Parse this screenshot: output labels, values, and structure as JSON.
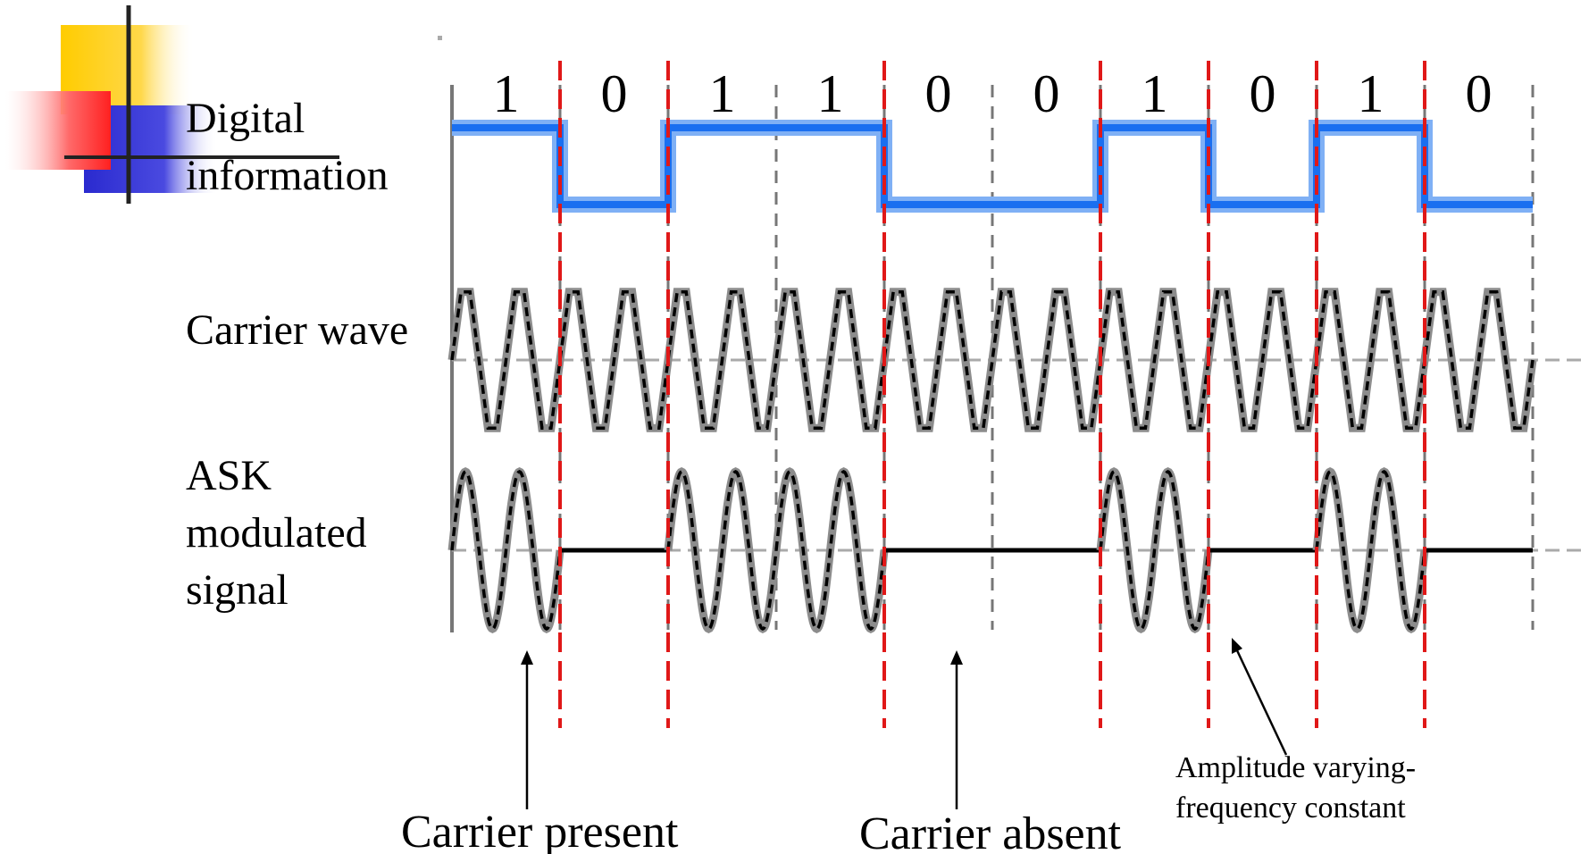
{
  "bits": [
    "1",
    "0",
    "1",
    "1",
    "0",
    "0",
    "1",
    "0",
    "1",
    "0"
  ],
  "labels": {
    "digital": [
      "Digital",
      "information"
    ],
    "carrier": "Carrier wave",
    "ask": [
      "ASK",
      "modulated",
      "signal"
    ]
  },
  "annotations": {
    "carrier_present": "Carrier present",
    "carrier_absent": "Carrier absent",
    "amplitude": [
      "Amplitude varying-",
      "frequency constant"
    ]
  },
  "colors": {
    "digital_line": "#1a6ff0",
    "digital_halo": "#7fb0f5",
    "transition_marker": "#e01818",
    "bit_boundary": "#777777",
    "wave_dark": "#000000",
    "wave_light": "#8c8c8c",
    "axis": "#aaaaaa",
    "deco_yellow": "#ffcc00",
    "deco_red": "#ff3030",
    "deco_blue": "#2a2acf"
  },
  "carrier_cycles_per_bit": 2
}
